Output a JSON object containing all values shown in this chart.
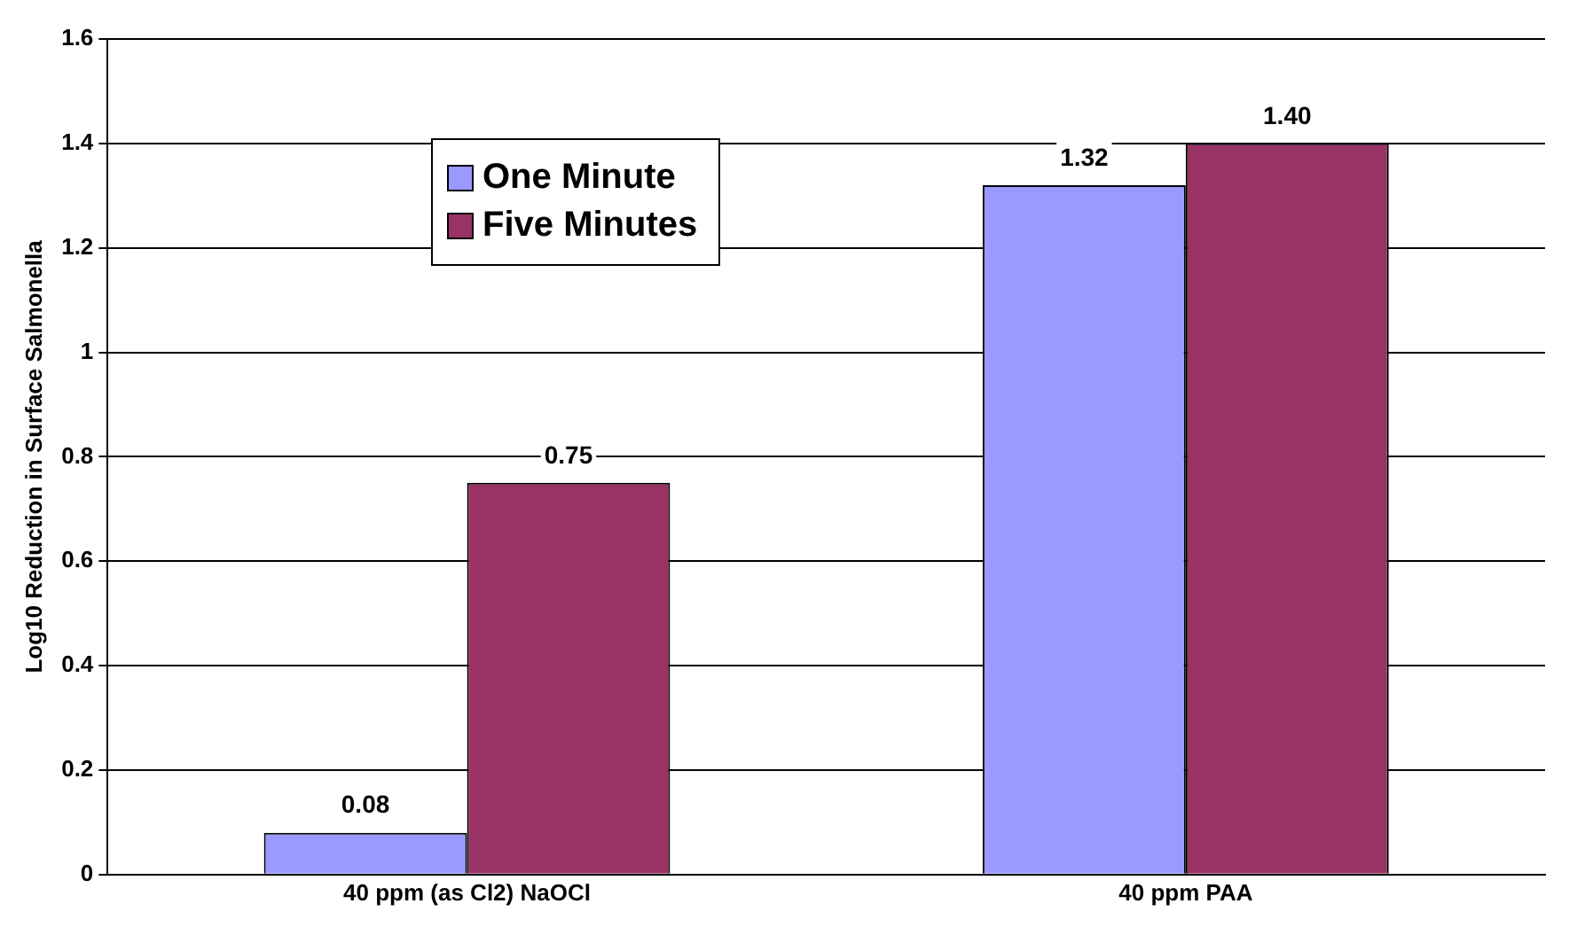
{
  "chart_data": {
    "type": "bar",
    "ylabel": "Log10 Reduction in Surface Salmonella",
    "categories": [
      "40 ppm (as Cl2) NaOCl",
      "40 ppm PAA"
    ],
    "series": [
      {
        "name": "One Minute",
        "color": "#9999ff",
        "values": [
          0.08,
          1.32
        ],
        "value_labels": [
          "0.08",
          "1.32"
        ]
      },
      {
        "name": "Five Minutes",
        "color": "#993366",
        "values": [
          0.75,
          1.4
        ],
        "value_labels": [
          "0.75",
          "1.40"
        ]
      }
    ],
    "ylim": [
      0,
      1.6
    ],
    "yticks": [
      0,
      0.2,
      0.4,
      0.6,
      0.8,
      1,
      1.2,
      1.4,
      1.6
    ],
    "grid": "y",
    "legend": "top left"
  }
}
